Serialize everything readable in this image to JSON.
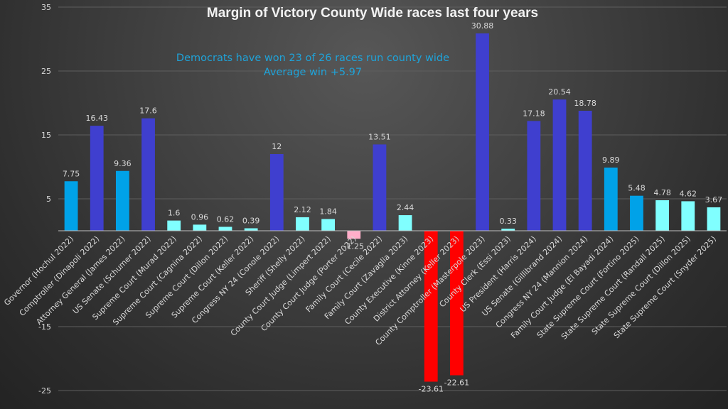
{
  "chart_data": {
    "type": "bar",
    "title": "Margin of Victory County Wide races last four years",
    "annotations": [
      "Democrats have won 23 of 26 races run county wide",
      "Average win +5.97"
    ],
    "xlabel": "",
    "ylabel": "",
    "ylim": [
      -25,
      35
    ],
    "yticks": [
      35,
      25,
      15,
      5,
      -15,
      -25
    ],
    "grid": true,
    "legend": "none",
    "categories": [
      "Governor (Hochul 2022)",
      "Comptroller (Dinapoli 2022)",
      "Attorney General (James 2022)",
      "US Senate (Schumer 2022)",
      "Supreme Court (Murad 2022)",
      "Supreme Court (Cagnina 2022)",
      "Supreme Court (Dillon 2022)",
      "Supreme Court (Keller 2022)",
      "Congress NY 24 (Conole 2022)",
      "Sheriff (Shelly 2022)",
      "County Court Judge (Limpert 2022)",
      "County Court Judge (Porter 2022)",
      "Family Court (Cecile 2022)",
      "Family Court (Zavaglia 2023)",
      "County Executive (Kinne 2023)",
      "District Attorney (Keller 2023)",
      "County Comptroller (Masterpole 2023)",
      "County Clerk (Essi 2023)",
      "US President (Harris 2024)",
      "US Senate (Gillibrand 2024)",
      "Congress NY 24 (Mannion 2024)",
      "Family Court Judge (El Bayadi 2024)",
      "State Supreme Court (Fortino 2025)",
      "State Supreme Court (Randall 2025)",
      "State Supreme Court (Dillon 2025)",
      "State Supreme Court (Snyder 2025)"
    ],
    "values": [
      7.75,
      16.43,
      9.36,
      17.6,
      1.6,
      0.96,
      0.62,
      0.39,
      12,
      2.12,
      1.84,
      -1.25,
      13.51,
      2.44,
      -23.61,
      -22.61,
      30.88,
      0.33,
      17.18,
      20.54,
      18.78,
      9.89,
      5.48,
      4.78,
      4.62,
      3.67
    ],
    "labels": [
      "7.75",
      "16.43",
      "9.36",
      "17.6",
      "1.6",
      "0.96",
      "0.62",
      "0.39",
      "12",
      "2.12",
      "1.84",
      "-1.25",
      "13.51",
      "2.44",
      "-23.61",
      "-22.61",
      "30.88",
      "0.33",
      "17.18",
      "20.54",
      "18.78",
      "9.89",
      "5.48",
      "4.78",
      "4.62",
      "3.67"
    ],
    "bar_colors": [
      "#00a2e8",
      "#3f3fcf",
      "#00a2e8",
      "#3f3fcf",
      "#80ffff",
      "#80ffff",
      "#80ffff",
      "#80ffff",
      "#3f3fcf",
      "#80ffff",
      "#80ffff",
      "#ffaec9",
      "#3f3fcf",
      "#80ffff",
      "#ff0000",
      "#ff0000",
      "#3f3fcf",
      "#80ffff",
      "#3f3fcf",
      "#3f3fcf",
      "#3f3fcf",
      "#00a2e8",
      "#00a2e8",
      "#80ffff",
      "#80ffff",
      "#80ffff"
    ]
  }
}
